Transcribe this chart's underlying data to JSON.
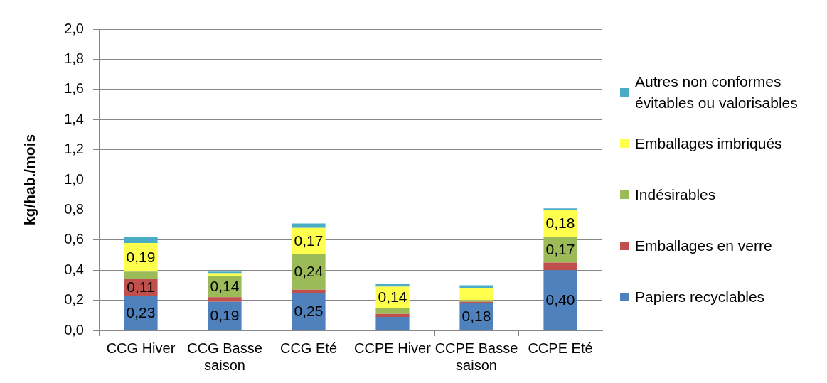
{
  "chart_data": {
    "type": "bar",
    "stacked": true,
    "ylabel": "kg/hab./mois",
    "categories": [
      "CCG Hiver",
      "CCG Basse saison",
      "CCG Eté",
      "CCPE Hiver",
      "CCPE Basse saison",
      "CCPE Eté"
    ],
    "series": [
      {
        "name": "Papiers recyclables",
        "color": "#4f81bd",
        "values": [
          0.23,
          0.19,
          0.25,
          0.09,
          0.18,
          0.4
        ],
        "value_labels": [
          "0,23",
          "0,19",
          "0,25",
          null,
          "0,18",
          "0,40"
        ]
      },
      {
        "name": "Emballages en verre",
        "color": "#c0504d",
        "values": [
          0.11,
          0.03,
          0.02,
          0.02,
          0.01,
          0.05
        ],
        "value_labels": [
          "0,11",
          null,
          null,
          null,
          null,
          null
        ]
      },
      {
        "name": "Indésirables",
        "color": "#9bbb59",
        "values": [
          0.05,
          0.14,
          0.24,
          0.04,
          0.01,
          0.17
        ],
        "value_labels": [
          null,
          "0,14",
          "0,24",
          null,
          null,
          "0,17"
        ]
      },
      {
        "name": "Emballages imbriqués",
        "color": "#ffff4d",
        "values": [
          0.19,
          0.02,
          0.17,
          0.14,
          0.08,
          0.18
        ],
        "value_labels": [
          "0,19",
          null,
          "0,17",
          "0,14",
          null,
          "0,18"
        ]
      },
      {
        "name": "Autres non conformes évitables ou valorisables",
        "color": "#4bacc6",
        "values": [
          0.04,
          0.01,
          0.03,
          0.02,
          0.02,
          0.01
        ]
      }
    ],
    "ylim": [
      0,
      2.0
    ],
    "yticks": [
      {
        "value": 0,
        "label": "0,0"
      },
      {
        "value": 0.2,
        "label": "0,2"
      },
      {
        "value": 0.4,
        "label": "0,4"
      },
      {
        "value": 0.6,
        "label": "0,6"
      },
      {
        "value": 0.8,
        "label": "0,8"
      },
      {
        "value": 1.0,
        "label": "1,0"
      },
      {
        "value": 1.2,
        "label": "1,2"
      },
      {
        "value": 1.4,
        "label": "1,4"
      },
      {
        "value": 1.6,
        "label": "1,6"
      },
      {
        "value": 1.8,
        "label": "1,8"
      },
      {
        "value": 2.0,
        "label": "2,0"
      }
    ],
    "grid": "y",
    "legend": "right"
  }
}
